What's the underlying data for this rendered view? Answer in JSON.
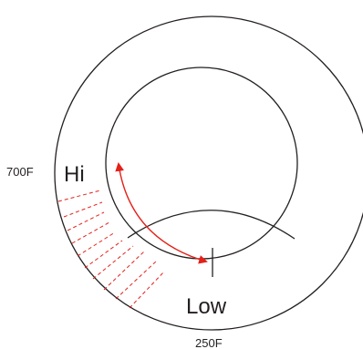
{
  "labels": {
    "max_temp": "700F",
    "min_temp": "250F",
    "high": "Hi",
    "low": "Low"
  },
  "colors": {
    "line": "#231f20",
    "accent": "#e32119"
  }
}
